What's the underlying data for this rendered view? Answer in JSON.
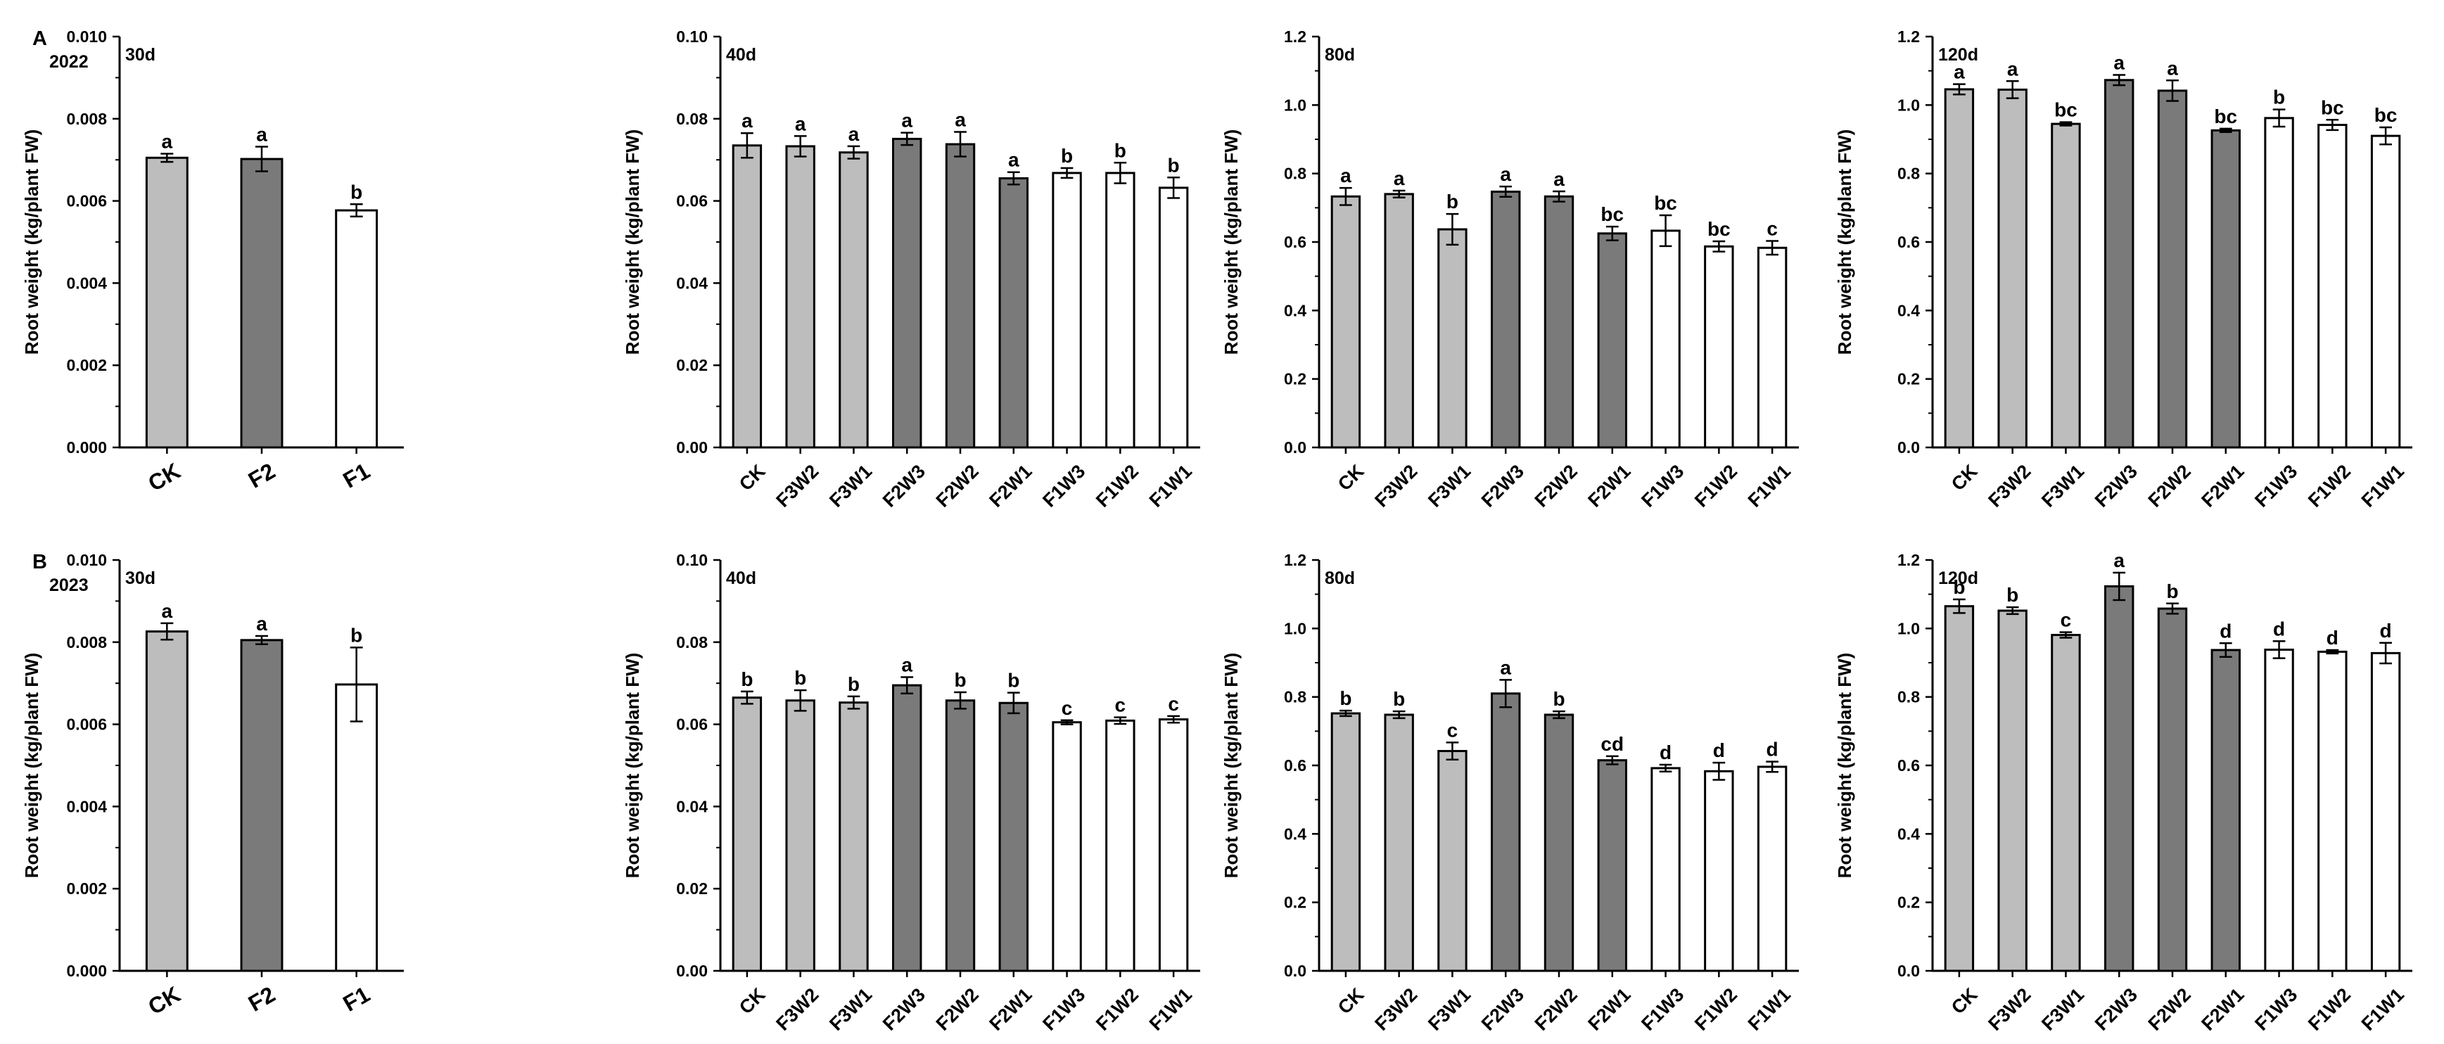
{
  "colors": {
    "ck": "#bdbdbd",
    "f2": "#7a7a7a",
    "f1": "#ffffff",
    "axis": "#000000"
  },
  "chart_data": [
    {
      "type": "bar",
      "panel": "A",
      "year": "2022",
      "day": "30d",
      "ylabel": "Root weight (kg/plant FW)",
      "ylim": [
        0,
        0.01
      ],
      "yticks": [
        "0.000",
        "0.002",
        "0.004",
        "0.006",
        "0.008",
        "0.010"
      ],
      "categories": [
        "CK",
        "F2",
        "F1"
      ],
      "groups": [
        "ck",
        "f2",
        "f1"
      ],
      "values": [
        0.00705,
        0.00702,
        0.00577
      ],
      "errors": [
        0.0001,
        0.0003,
        0.00015
      ],
      "letters": [
        "a",
        "a",
        "b"
      ]
    },
    {
      "type": "bar",
      "panel": "",
      "year": "",
      "day": "40d",
      "ylabel": "Root weight (kg/plant FW)",
      "ylim": [
        0,
        0.1
      ],
      "yticks": [
        "0.00",
        "0.02",
        "0.04",
        "0.06",
        "0.08",
        "0.10"
      ],
      "categories": [
        "CK",
        "F3W2",
        "F3W1",
        "F2W3",
        "F2W2",
        "F2W1",
        "F1W3",
        "F1W2",
        "F1W1"
      ],
      "groups": [
        "ck",
        "ck",
        "ck",
        "f2",
        "f2",
        "f2",
        "f1",
        "f1",
        "f1"
      ],
      "values": [
        0.0735,
        0.0733,
        0.0718,
        0.0751,
        0.0738,
        0.0655,
        0.0668,
        0.0668,
        0.0632
      ],
      "errors": [
        0.003,
        0.0025,
        0.0015,
        0.0015,
        0.003,
        0.0015,
        0.0012,
        0.0025,
        0.0025
      ],
      "letters": [
        "a",
        "a",
        "a",
        "a",
        "a",
        "a",
        "b",
        "b",
        "b"
      ]
    },
    {
      "type": "bar",
      "panel": "",
      "year": "",
      "day": "80d",
      "ylabel": "Root weight (kg/plant FW)",
      "ylim": [
        0,
        1.2
      ],
      "yticks": [
        "0.0",
        "0.2",
        "0.4",
        "0.6",
        "0.8",
        "1.0",
        "1.2"
      ],
      "categories": [
        "CK",
        "F3W2",
        "F3W1",
        "F2W3",
        "F2W2",
        "F2W1",
        "F1W3",
        "F1W2",
        "F1W1"
      ],
      "groups": [
        "ck",
        "ck",
        "ck",
        "f2",
        "f2",
        "f2",
        "f1",
        "f1",
        "f1"
      ],
      "values": [
        0.733,
        0.74,
        0.637,
        0.747,
        0.733,
        0.625,
        0.633,
        0.587,
        0.583
      ],
      "errors": [
        0.025,
        0.01,
        0.045,
        0.015,
        0.015,
        0.02,
        0.045,
        0.015,
        0.02
      ],
      "letters": [
        "a",
        "a",
        "b",
        "a",
        "a",
        "bc",
        "bc",
        "bc",
        "c"
      ]
    },
    {
      "type": "bar",
      "panel": "",
      "year": "",
      "day": "120d",
      "ylabel": "Root weight (kg/plant FW)",
      "ylim": [
        0,
        1.2
      ],
      "yticks": [
        "0.0",
        "0.2",
        "0.4",
        "0.6",
        "0.8",
        "1.0",
        "1.2"
      ],
      "categories": [
        "CK",
        "F3W2",
        "F3W1",
        "F2W3",
        "F2W2",
        "F2W1",
        "F1W3",
        "F1W2",
        "F1W1"
      ],
      "groups": [
        "ck",
        "ck",
        "ck",
        "f2",
        "f2",
        "f2",
        "f1",
        "f1",
        "f1"
      ],
      "values": [
        1.046,
        1.045,
        0.945,
        1.073,
        1.042,
        0.926,
        0.962,
        0.942,
        0.91
      ],
      "errors": [
        0.015,
        0.025,
        0.005,
        0.015,
        0.03,
        0.005,
        0.025,
        0.015,
        0.025
      ],
      "letters": [
        "a",
        "a",
        "bc",
        "a",
        "a",
        "bc",
        "b",
        "bc",
        "bc"
      ]
    },
    {
      "type": "bar",
      "panel": "B",
      "year": "2023",
      "day": "30d",
      "ylabel": "Root weight (kg/plant FW)",
      "ylim": [
        0,
        0.01
      ],
      "yticks": [
        "0.000",
        "0.002",
        "0.004",
        "0.006",
        "0.008",
        "0.010"
      ],
      "categories": [
        "CK",
        "F2",
        "F1"
      ],
      "groups": [
        "ck",
        "f2",
        "f1"
      ],
      "values": [
        0.00826,
        0.00805,
        0.00697
      ],
      "errors": [
        0.0002,
        0.0001,
        0.0009
      ],
      "letters": [
        "a",
        "a",
        "b"
      ]
    },
    {
      "type": "bar",
      "panel": "",
      "year": "",
      "day": "40d",
      "ylabel": "Root weight (kg/plant FW)",
      "ylim": [
        0,
        0.1
      ],
      "yticks": [
        "0.00",
        "0.02",
        "0.04",
        "0.06",
        "0.08",
        "0.10"
      ],
      "categories": [
        "CK",
        "F3W2",
        "F3W1",
        "F2W3",
        "F2W2",
        "F2W1",
        "F1W3",
        "F1W2",
        "F1W1"
      ],
      "groups": [
        "ck",
        "ck",
        "ck",
        "f2",
        "f2",
        "f2",
        "f1",
        "f1",
        "f1"
      ],
      "values": [
        0.0665,
        0.0658,
        0.0653,
        0.0695,
        0.0658,
        0.0652,
        0.0605,
        0.0609,
        0.0612
      ],
      "errors": [
        0.0015,
        0.0025,
        0.0015,
        0.002,
        0.002,
        0.0025,
        0.0005,
        0.0008,
        0.0008
      ],
      "letters": [
        "b",
        "b",
        "b",
        "a",
        "b",
        "b",
        "c",
        "c",
        "c"
      ]
    },
    {
      "type": "bar",
      "panel": "",
      "year": "",
      "day": "80d",
      "ylabel": "Root weight (kg/plant FW)",
      "ylim": [
        0,
        1.2
      ],
      "yticks": [
        "0.0",
        "0.2",
        "0.4",
        "0.6",
        "0.8",
        "1.0",
        "1.2"
      ],
      "categories": [
        "CK",
        "F3W2",
        "F3W1",
        "F2W3",
        "F2W2",
        "F2W1",
        "F1W3",
        "F1W2",
        "F1W1"
      ],
      "groups": [
        "ck",
        "ck",
        "ck",
        "f2",
        "f2",
        "f2",
        "f1",
        "f1",
        "f1"
      ],
      "values": [
        0.752,
        0.748,
        0.642,
        0.81,
        0.748,
        0.615,
        0.592,
        0.583,
        0.596
      ],
      "errors": [
        0.008,
        0.01,
        0.025,
        0.04,
        0.01,
        0.012,
        0.01,
        0.025,
        0.015
      ],
      "letters": [
        "b",
        "b",
        "c",
        "a",
        "b",
        "cd",
        "d",
        "d",
        "d"
      ]
    },
    {
      "type": "bar",
      "panel": "",
      "year": "",
      "day": "120d",
      "ylabel": "Root weight (kg/plant FW)",
      "ylim": [
        0,
        1.2
      ],
      "yticks": [
        "0.0",
        "0.2",
        "0.4",
        "0.6",
        "0.8",
        "1.0",
        "1.2"
      ],
      "categories": [
        "CK",
        "F3W2",
        "F3W1",
        "F2W3",
        "F2W2",
        "F2W1",
        "F1W3",
        "F1W2",
        "F1W1"
      ],
      "groups": [
        "ck",
        "ck",
        "ck",
        "f2",
        "f2",
        "f2",
        "f1",
        "f1",
        "f1"
      ],
      "values": [
        1.065,
        1.052,
        0.981,
        1.123,
        1.058,
        0.937,
        0.938,
        0.932,
        0.928
      ],
      "errors": [
        0.02,
        0.01,
        0.008,
        0.04,
        0.015,
        0.02,
        0.025,
        0.005,
        0.03
      ],
      "letters": [
        "b",
        "b",
        "c",
        "a",
        "b",
        "d",
        "d",
        "d",
        "d"
      ]
    }
  ]
}
